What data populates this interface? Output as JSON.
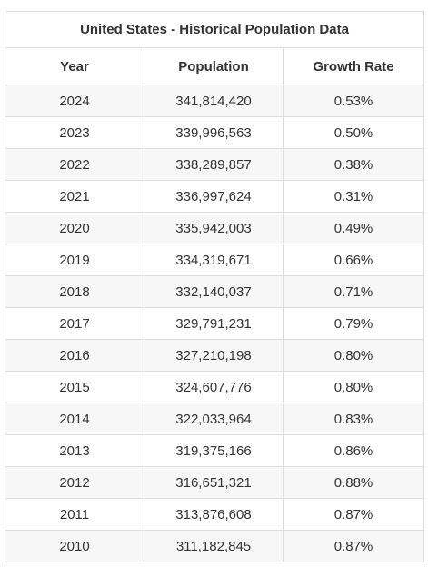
{
  "table": {
    "title": "United States - Historical Population Data",
    "columns": [
      "Year",
      "Population",
      "Growth Rate"
    ],
    "rows": [
      [
        "2024",
        "341,814,420",
        "0.53%"
      ],
      [
        "2023",
        "339,996,563",
        "0.50%"
      ],
      [
        "2022",
        "338,289,857",
        "0.38%"
      ],
      [
        "2021",
        "336,997,624",
        "0.31%"
      ],
      [
        "2020",
        "335,942,003",
        "0.49%"
      ],
      [
        "2019",
        "334,319,671",
        "0.66%"
      ],
      [
        "2018",
        "332,140,037",
        "0.71%"
      ],
      [
        "2017",
        "329,791,231",
        "0.79%"
      ],
      [
        "2016",
        "327,210,198",
        "0.80%"
      ],
      [
        "2015",
        "324,607,776",
        "0.80%"
      ],
      [
        "2014",
        "322,033,964",
        "0.83%"
      ],
      [
        "2013",
        "319,375,166",
        "0.86%"
      ],
      [
        "2012",
        "316,651,321",
        "0.88%"
      ],
      [
        "2011",
        "313,876,608",
        "0.87%"
      ],
      [
        "2010",
        "311,182,845",
        "0.87%"
      ]
    ]
  },
  "colors": {
    "border": "#dddddd",
    "stripe": "#f7f7f7",
    "text": "#333333"
  }
}
